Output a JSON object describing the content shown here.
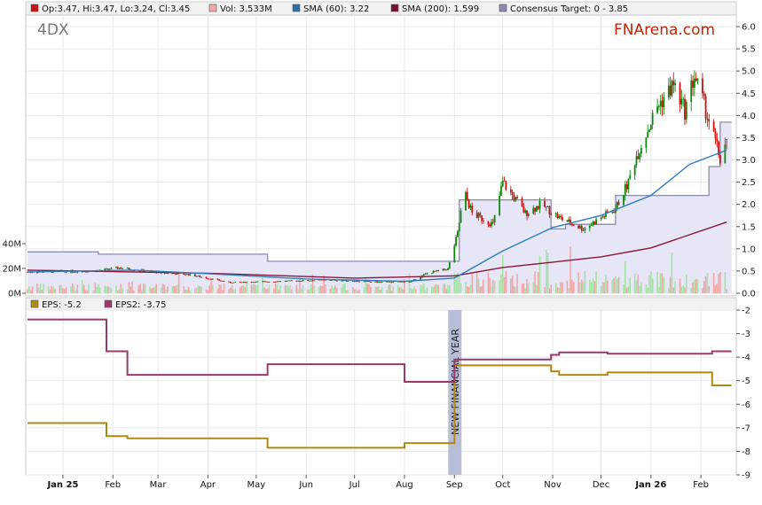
{
  "ticker": "4DX",
  "brand": "FNArena.com",
  "colors": {
    "brand": "#cc2200",
    "price_up": "#0a8a0a",
    "price_down": "#cc1111",
    "volume_up": "#a6e3a6",
    "volume_down": "#f2a7a7",
    "sma60": "#2e7dbf",
    "sma200": "#8b1538",
    "consensus_line": "#8a8ab4",
    "consensus_fill": "#e6e6f6",
    "eps": "#b08a10",
    "eps2": "#9a3a6a",
    "fy_band": "#b7bdd6",
    "grid": "#e8e8e8",
    "legend_bg": "#f2f2f2"
  },
  "legend_top": [
    {
      "label": "Op:3.47, Hi:3.47, Lo:3.24, Cl:3.45",
      "color": "#cc1111"
    },
    {
      "label": "Vol: 3.533M",
      "color": "#f2a7a7"
    },
    {
      "label": "SMA (60): 3.22",
      "color": "#2e6fa8"
    },
    {
      "label": "SMA (200): 1.599",
      "color": "#7a1030"
    },
    {
      "label": "Consensus Target: 0 - 3.85",
      "color": "#8a8ab4"
    }
  ],
  "legend_bottom": [
    {
      "label": "EPS: -5.2",
      "color": "#b08a10"
    },
    {
      "label": "EPS2: -3.75",
      "color": "#9a3a6a"
    }
  ],
  "annotation": "NEW FINANCIAL YEAR",
  "chart_data": [
    {
      "type": "candlestick",
      "title": "",
      "price_axis": {
        "min": 0.0,
        "max": 6.0,
        "ticks": [
          "6.0",
          "5.5",
          "5.0",
          "4.5",
          "4.0",
          "3.5",
          "3.0",
          "2.5",
          "2.0",
          "1.5",
          "1.0",
          "0.5",
          "0.0"
        ]
      },
      "volume_axis": {
        "ticks": [
          "40M",
          "20M",
          "0M"
        ],
        "max": 50
      },
      "x_labels": [
        "Jan 25",
        "Feb",
        "Mar",
        "Apr",
        "May",
        "Jun",
        "Jul",
        "Aug",
        "Sep",
        "Oct",
        "Nov",
        "Dec",
        "Jan 26",
        "Feb"
      ],
      "close_anchors": [
        {
          "date": "2024-12-10",
          "close": 0.48
        },
        {
          "date": "2025-01-20",
          "close": 0.5
        },
        {
          "date": "2025-02-05",
          "close": 0.57
        },
        {
          "date": "2025-02-25",
          "close": 0.48
        },
        {
          "date": "2025-03-20",
          "close": 0.42
        },
        {
          "date": "2025-04-15",
          "close": 0.24
        },
        {
          "date": "2025-05-15",
          "close": 0.27
        },
        {
          "date": "2025-06-15",
          "close": 0.3
        },
        {
          "date": "2025-07-15",
          "close": 0.25
        },
        {
          "date": "2025-08-05",
          "close": 0.26
        },
        {
          "date": "2025-08-15",
          "close": 0.45
        },
        {
          "date": "2025-08-28",
          "close": 0.55
        },
        {
          "date": "2025-09-03",
          "close": 1.35
        },
        {
          "date": "2025-09-07",
          "close": 2.3
        },
        {
          "date": "2025-09-12",
          "close": 1.8
        },
        {
          "date": "2025-09-25",
          "close": 1.55
        },
        {
          "date": "2025-10-01",
          "close": 2.5
        },
        {
          "date": "2025-10-15",
          "close": 1.8
        },
        {
          "date": "2025-10-25",
          "close": 2.0
        },
        {
          "date": "2025-11-05",
          "close": 1.7
        },
        {
          "date": "2025-11-20",
          "close": 1.45
        },
        {
          "date": "2025-12-01",
          "close": 1.7
        },
        {
          "date": "2025-12-10",
          "close": 1.9
        },
        {
          "date": "2025-12-18",
          "close": 2.5
        },
        {
          "date": "2025-12-22",
          "close": 3.0
        },
        {
          "date": "2026-01-05",
          "close": 4.2
        },
        {
          "date": "2026-01-15",
          "close": 4.7
        },
        {
          "date": "2026-01-22",
          "close": 4.1
        },
        {
          "date": "2026-01-28",
          "close": 4.9
        },
        {
          "date": "2026-02-05",
          "close": 4.0
        },
        {
          "date": "2026-02-10",
          "close": 3.4
        },
        {
          "date": "2026-02-13",
          "close": 3.0
        },
        {
          "date": "2026-02-17",
          "close": 3.45
        }
      ],
      "last_bar": {
        "open": 3.47,
        "high": 3.47,
        "low": 3.24,
        "close": 3.45,
        "volume_m": 3.533
      },
      "sma60": [
        {
          "date": "2024-12-10",
          "value": 0.48
        },
        {
          "date": "2025-02-15",
          "value": 0.52
        },
        {
          "date": "2025-04-01",
          "value": 0.44
        },
        {
          "date": "2025-06-01",
          "value": 0.32
        },
        {
          "date": "2025-08-01",
          "value": 0.27
        },
        {
          "date": "2025-09-01",
          "value": 0.34
        },
        {
          "date": "2025-10-01",
          "value": 0.95
        },
        {
          "date": "2025-11-01",
          "value": 1.48
        },
        {
          "date": "2025-12-01",
          "value": 1.75
        },
        {
          "date": "2026-01-01",
          "value": 2.2
        },
        {
          "date": "2026-01-25",
          "value": 2.9
        },
        {
          "date": "2026-02-17",
          "value": 3.22
        }
      ],
      "sma200": [
        {
          "date": "2024-12-10",
          "value": 0.52
        },
        {
          "date": "2025-04-01",
          "value": 0.45
        },
        {
          "date": "2025-07-01",
          "value": 0.34
        },
        {
          "date": "2025-09-01",
          "value": 0.39
        },
        {
          "date": "2025-10-01",
          "value": 0.58
        },
        {
          "date": "2025-11-01",
          "value": 0.7
        },
        {
          "date": "2025-12-01",
          "value": 0.82
        },
        {
          "date": "2026-01-01",
          "value": 1.02
        },
        {
          "date": "2026-02-17",
          "value": 1.6
        }
      ],
      "consensus_target": [
        {
          "date": "2024-12-10",
          "value": 0.93
        },
        {
          "date": "2025-01-23",
          "value": 0.93
        },
        {
          "date": "2025-01-23",
          "value": 0.88
        },
        {
          "date": "2025-05-08",
          "value": 0.88
        },
        {
          "date": "2025-05-08",
          "value": 0.72
        },
        {
          "date": "2025-09-04",
          "value": 0.72
        },
        {
          "date": "2025-09-04",
          "value": 2.1
        },
        {
          "date": "2025-10-31",
          "value": 2.1
        },
        {
          "date": "2025-10-31",
          "value": 1.45
        },
        {
          "date": "2025-11-09",
          "value": 1.45
        },
        {
          "date": "2025-11-09",
          "value": 1.55
        },
        {
          "date": "2025-12-10",
          "value": 1.55
        },
        {
          "date": "2025-12-10",
          "value": 2.2
        },
        {
          "date": "2026-02-06",
          "value": 2.2
        },
        {
          "date": "2026-02-06",
          "value": 2.85
        },
        {
          "date": "2026-02-13",
          "value": 2.85
        },
        {
          "date": "2026-02-13",
          "value": 3.85
        },
        {
          "date": "2026-02-20",
          "value": 3.85
        }
      ]
    },
    {
      "type": "line",
      "title": "",
      "y_axis": {
        "min": -9,
        "max": -2,
        "ticks": [
          "-2",
          "-3",
          "-4",
          "-5",
          "-6",
          "-7",
          "-8",
          "-9"
        ]
      },
      "series": [
        {
          "name": "EPS",
          "points": [
            {
              "date": "2024-12-10",
              "value": -6.8
            },
            {
              "date": "2025-01-28",
              "value": -6.8
            },
            {
              "date": "2025-01-28",
              "value": -7.35
            },
            {
              "date": "2025-02-10",
              "value": -7.35
            },
            {
              "date": "2025-02-10",
              "value": -7.45
            },
            {
              "date": "2025-05-08",
              "value": -7.45
            },
            {
              "date": "2025-05-08",
              "value": -7.85
            },
            {
              "date": "2025-08-01",
              "value": -7.85
            },
            {
              "date": "2025-08-01",
              "value": -7.65
            },
            {
              "date": "2025-09-01",
              "value": -7.65
            },
            {
              "date": "2025-09-01",
              "value": -4.35
            },
            {
              "date": "2025-10-31",
              "value": -4.35
            },
            {
              "date": "2025-10-31",
              "value": -4.6
            },
            {
              "date": "2025-11-05",
              "value": -4.6
            },
            {
              "date": "2025-11-05",
              "value": -4.75
            },
            {
              "date": "2025-12-05",
              "value": -4.75
            },
            {
              "date": "2025-12-05",
              "value": -4.65
            },
            {
              "date": "2026-02-08",
              "value": -4.65
            },
            {
              "date": "2026-02-08",
              "value": -5.2
            },
            {
              "date": "2026-02-20",
              "value": -5.2
            }
          ]
        },
        {
          "name": "EPS2",
          "points": [
            {
              "date": "2024-12-10",
              "value": -2.4
            },
            {
              "date": "2025-01-28",
              "value": -2.4
            },
            {
              "date": "2025-01-28",
              "value": -3.75
            },
            {
              "date": "2025-02-10",
              "value": -3.75
            },
            {
              "date": "2025-02-10",
              "value": -4.75
            },
            {
              "date": "2025-05-08",
              "value": -4.75
            },
            {
              "date": "2025-05-08",
              "value": -4.3
            },
            {
              "date": "2025-08-01",
              "value": -4.3
            },
            {
              "date": "2025-08-01",
              "value": -5.05
            },
            {
              "date": "2025-09-01",
              "value": -5.05
            },
            {
              "date": "2025-09-01",
              "value": -4.1
            },
            {
              "date": "2025-10-31",
              "value": -4.1
            },
            {
              "date": "2025-10-31",
              "value": -3.9
            },
            {
              "date": "2025-11-05",
              "value": -3.9
            },
            {
              "date": "2025-11-05",
              "value": -3.8
            },
            {
              "date": "2025-12-05",
              "value": -3.8
            },
            {
              "date": "2025-12-05",
              "value": -3.85
            },
            {
              "date": "2026-02-08",
              "value": -3.85
            },
            {
              "date": "2026-02-08",
              "value": -3.75
            },
            {
              "date": "2026-02-20",
              "value": -3.75
            }
          ]
        }
      ],
      "annotation_date": "2025-09-01"
    }
  ]
}
